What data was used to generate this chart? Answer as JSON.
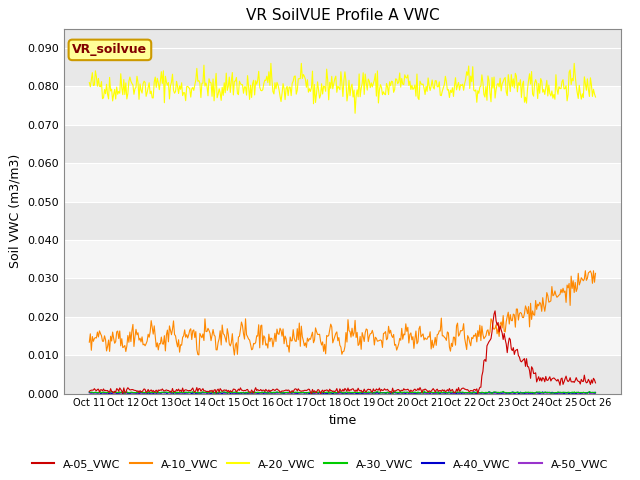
{
  "title": "VR SoilVUE Profile A VWC",
  "xlabel": "time",
  "ylabel": "Soil VWC (m3/m3)",
  "ylim": [
    0.0,
    0.095
  ],
  "yticks": [
    0.0,
    0.01,
    0.02,
    0.03,
    0.04,
    0.05,
    0.06,
    0.07,
    0.08,
    0.09
  ],
  "xtick_labels": [
    "Oct 11",
    "Oct 12",
    "Oct 13",
    "Oct 14",
    "Oct 15",
    "Oct 16",
    "Oct 17",
    "Oct 18",
    "Oct 19",
    "Oct 20",
    "Oct 21",
    "Oct 22",
    "Oct 23",
    "Oct 24",
    "Oct 25",
    "Oct 26"
  ],
  "fig_bg_color": "#ffffff",
  "plot_bg_color": "#e8e8e8",
  "grid_band_colors": [
    "#e8e8e8",
    "#f5f5f5"
  ],
  "legend_label": "VR_soilvue",
  "legend_box_color": "#ffff99",
  "legend_box_edge": "#cc9900",
  "series_colors": {
    "A-05_VWC": "#cc0000",
    "A-10_VWC": "#ff8800",
    "A-20_VWC": "#ffff00",
    "A-30_VWC": "#00cc00",
    "A-40_VWC": "#0000cc",
    "A-50_VWC": "#9933cc"
  },
  "n_points": 500,
  "seed": 42
}
